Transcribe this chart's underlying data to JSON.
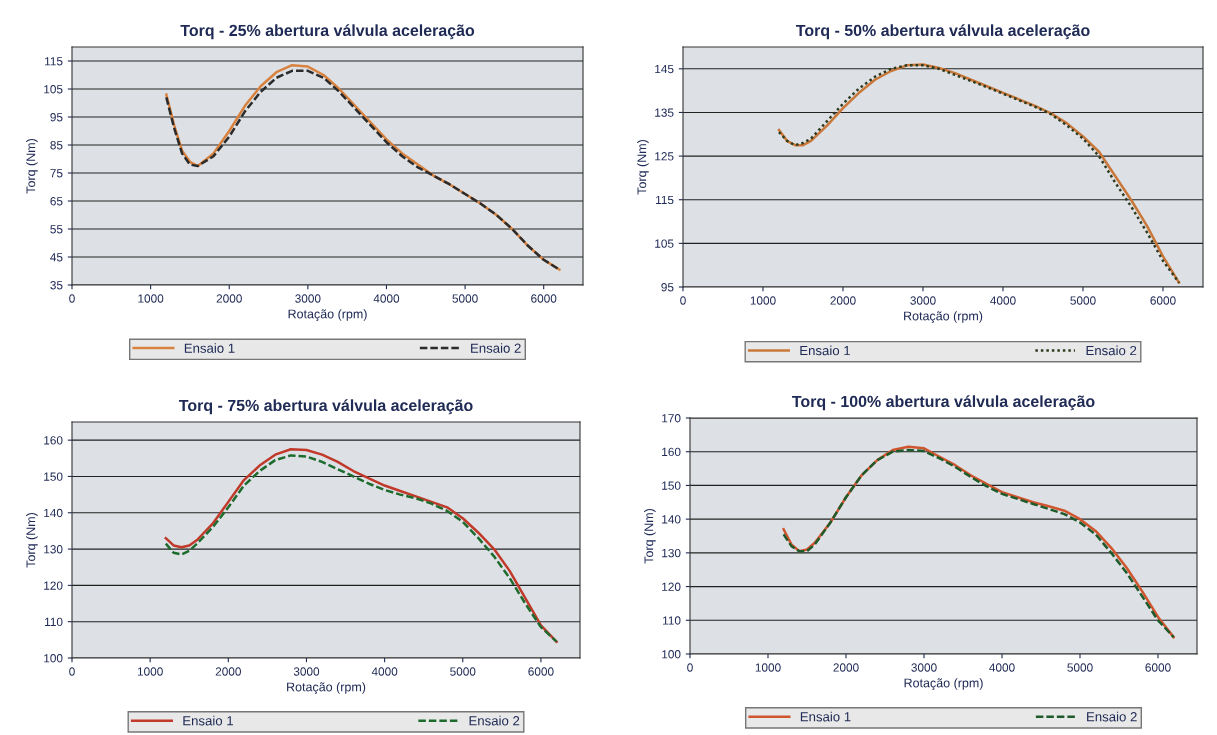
{
  "chart_data": [
    {
      "type": "line",
      "title": "Torq - 25% abertura válvula aceleração",
      "xlabel": "Rotação (rpm)",
      "ylabel": "Torq (Nm)",
      "xlim": [
        0,
        6500
      ],
      "xticks": [
        0,
        1000,
        2000,
        3000,
        4000,
        5000,
        6000
      ],
      "ylim": [
        35,
        120
      ],
      "yticks": [
        35,
        45,
        55,
        65,
        75,
        85,
        95,
        105,
        115
      ],
      "grid": "y",
      "legend": "bottom",
      "marker": "none",
      "x": [
        1200,
        1300,
        1400,
        1500,
        1600,
        1800,
        2000,
        2200,
        2400,
        2600,
        2800,
        3000,
        3200,
        3400,
        3600,
        3800,
        4000,
        4200,
        4400,
        4600,
        4800,
        5000,
        5200,
        5400,
        5600,
        5800,
        6000,
        6200
      ],
      "series": [
        {
          "name": "Ensaio 1",
          "color": "#d9823f",
          "line_style": "solid",
          "values": [
            103,
            92,
            83,
            79,
            77.5,
            82,
            90,
            99,
            106,
            111,
            113.5,
            113,
            110,
            105,
            99,
            93,
            87,
            82,
            78,
            74,
            71,
            67.5,
            64,
            60,
            55,
            49,
            44,
            40.5
          ]
        },
        {
          "name": "Ensaio 2",
          "color": "#2b2b2b",
          "line_style": "dashed",
          "values": [
            102,
            91,
            82,
            78,
            77.5,
            81,
            88,
            97,
            104,
            109,
            111.5,
            111.5,
            109,
            104,
            98,
            92,
            86,
            81,
            77,
            74,
            71,
            67.5,
            64,
            60,
            55,
            49,
            44,
            40.5
          ]
        }
      ]
    },
    {
      "type": "line",
      "title": "Torq - 50% abertura válvula aceleração",
      "xlabel": "Rotação (rpm)",
      "ylabel": "Torq (Nm)",
      "xlim": [
        0,
        6500
      ],
      "xticks": [
        0,
        1000,
        2000,
        3000,
        4000,
        5000,
        6000
      ],
      "ylim": [
        95,
        150
      ],
      "yticks": [
        95,
        105,
        115,
        125,
        135,
        145
      ],
      "grid": "y",
      "legend": "bottom",
      "marker": "none",
      "x": [
        1200,
        1300,
        1400,
        1500,
        1600,
        1800,
        2000,
        2200,
        2400,
        2600,
        2800,
        3000,
        3200,
        3400,
        3600,
        3800,
        4000,
        4200,
        4400,
        4600,
        4800,
        5000,
        5200,
        5400,
        5600,
        5800,
        6000,
        6200
      ],
      "series": [
        {
          "name": "Ensaio 1",
          "color": "#c9783a",
          "line_style": "solid",
          "values": [
            131,
            128.5,
            127.5,
            127.5,
            128.5,
            132,
            136,
            139.5,
            142.5,
            144.5,
            145.8,
            146,
            145.2,
            144,
            142.5,
            141,
            139.5,
            138,
            136.5,
            134.8,
            132.5,
            129.5,
            126,
            120.5,
            115,
            109,
            102,
            96
          ]
        },
        {
          "name": "Ensaio 2",
          "color": "#2e3a1e",
          "line_style": "dotted",
          "values": [
            130.5,
            128.5,
            127.5,
            128,
            129,
            133,
            137,
            140.5,
            143.2,
            145,
            145.8,
            145.8,
            145,
            143.6,
            142.2,
            140.8,
            139.3,
            137.8,
            136.3,
            134.6,
            132,
            129,
            125,
            119,
            113.5,
            107.5,
            101,
            96
          ]
        }
      ]
    },
    {
      "type": "line",
      "title": "Torq - 75% abertura válvula aceleração",
      "xlabel": "Rotação (rpm)",
      "ylabel": "Torq (Nm)",
      "xlim": [
        0,
        6500
      ],
      "xticks": [
        0,
        1000,
        2000,
        3000,
        4000,
        5000,
        6000
      ],
      "ylim": [
        100,
        165
      ],
      "yticks": [
        100,
        110,
        120,
        130,
        140,
        150,
        160
      ],
      "grid": "y",
      "legend": "bottom",
      "marker": "none",
      "x": [
        1200,
        1300,
        1400,
        1500,
        1600,
        1800,
        2000,
        2200,
        2400,
        2600,
        2800,
        3000,
        3200,
        3400,
        3600,
        3800,
        4000,
        4200,
        4400,
        4600,
        4800,
        5000,
        5200,
        5400,
        5600,
        5800,
        6000,
        6200
      ],
      "series": [
        {
          "name": "Ensaio 1",
          "color": "#c0392b",
          "line_style": "solid",
          "values": [
            133,
            131,
            130.5,
            131,
            132.5,
            137,
            143,
            149,
            153,
            156,
            157.5,
            157.3,
            156,
            154,
            151.5,
            149.5,
            147.5,
            146,
            144.5,
            143,
            141.5,
            138.5,
            134.5,
            130,
            124,
            116.5,
            109,
            104.5
          ]
        },
        {
          "name": "Ensaio 2",
          "color": "#1e6b2e",
          "line_style": "dashed",
          "values": [
            131.5,
            129,
            128.5,
            129.5,
            131.5,
            136,
            141.5,
            147.5,
            151.5,
            154.5,
            155.8,
            155.5,
            154,
            152,
            150,
            148,
            146.3,
            145,
            144,
            142.5,
            140.5,
            137.5,
            133,
            128,
            122,
            115,
            108.5,
            104.5
          ]
        }
      ]
    },
    {
      "type": "line",
      "title": "Torq - 100% abertura válvula aceleração",
      "xlabel": "Rotação (rpm)",
      "ylabel": "Torq (Nm)",
      "xlim": [
        0,
        6500
      ],
      "xticks": [
        0,
        1000,
        2000,
        3000,
        4000,
        5000,
        6000
      ],
      "ylim": [
        100,
        170
      ],
      "yticks": [
        100,
        110,
        120,
        130,
        140,
        150,
        160,
        170
      ],
      "grid": "y",
      "legend": "bottom",
      "marker": "none",
      "x": [
        1200,
        1300,
        1400,
        1500,
        1600,
        1800,
        2000,
        2200,
        2400,
        2600,
        2800,
        3000,
        3200,
        3400,
        3600,
        3800,
        4000,
        4200,
        4400,
        4600,
        4800,
        5000,
        5200,
        5400,
        5600,
        5800,
        6000,
        6200
      ],
      "series": [
        {
          "name": "Ensaio 1",
          "color": "#d0552f",
          "line_style": "solid",
          "values": [
            137,
            132.5,
            130.5,
            131,
            133,
            139,
            146.5,
            153,
            157.5,
            160.5,
            161.5,
            161,
            158.5,
            156,
            153,
            150.5,
            148,
            146.5,
            145,
            143.8,
            142.5,
            140,
            136.5,
            131.5,
            125.5,
            118.5,
            111,
            105
          ]
        },
        {
          "name": "Ensaio 2",
          "color": "#1e5a2a",
          "line_style": "dashed",
          "values": [
            135.5,
            132,
            130.5,
            130.5,
            132.5,
            139,
            146.5,
            153,
            157.5,
            160,
            160.5,
            160.2,
            158,
            155.5,
            152.5,
            149.8,
            147.5,
            146,
            144.5,
            143,
            141.5,
            139,
            135.5,
            130,
            124,
            117,
            110,
            105
          ]
        }
      ]
    }
  ]
}
